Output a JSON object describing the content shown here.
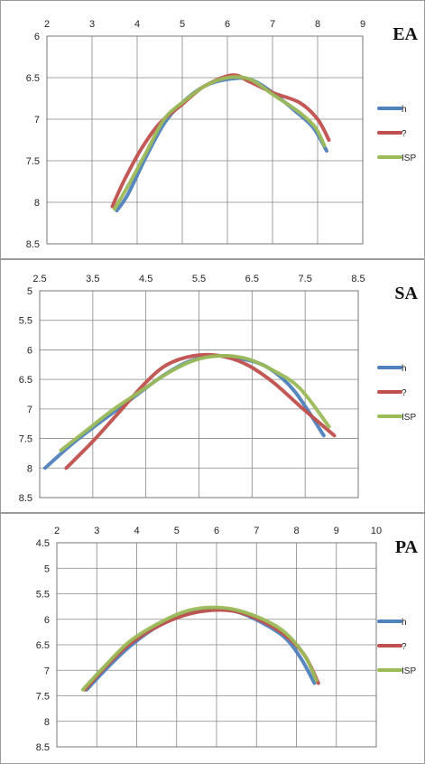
{
  "chart_data": [
    {
      "type": "line",
      "title": "EA",
      "xlim": [
        2,
        9
      ],
      "ylim": [
        6,
        8.5
      ],
      "y_axis_inverted": true,
      "x_axis_position": "top",
      "x_ticks": [
        "2",
        "3",
        "4",
        "5",
        "6",
        "7",
        "8",
        "9"
      ],
      "y_ticks": [
        "6",
        "6.5",
        "7",
        "7.5",
        "8",
        "8.5"
      ],
      "grid": true,
      "legend_position": "right",
      "series": [
        {
          "name": "h",
          "color": "#4f81bd",
          "x": [
            3.55,
            3.8,
            4.2,
            4.6,
            5.0,
            5.5,
            6.0,
            6.5,
            7.0,
            7.5,
            7.9,
            8.2
          ],
          "y": [
            8.1,
            7.9,
            7.45,
            7.05,
            6.8,
            6.6,
            6.52,
            6.52,
            6.68,
            6.9,
            7.1,
            7.38
          ]
        },
        {
          "name": "?",
          "color": "#c0504d",
          "x": [
            3.45,
            3.7,
            4.1,
            4.5,
            5.0,
            5.5,
            6.1,
            6.5,
            7.0,
            7.6,
            8.0,
            8.25
          ],
          "y": [
            8.05,
            7.75,
            7.35,
            7.05,
            6.82,
            6.6,
            6.47,
            6.55,
            6.68,
            6.8,
            7.0,
            7.25
          ]
        },
        {
          "name": "ISP",
          "color": "#9bbb59",
          "x": [
            3.5,
            3.8,
            4.2,
            4.6,
            5.0,
            5.5,
            6.0,
            6.5,
            7.0,
            7.6,
            7.95,
            8.15
          ],
          "y": [
            8.08,
            7.8,
            7.4,
            7.0,
            6.8,
            6.6,
            6.5,
            6.52,
            6.7,
            6.92,
            7.1,
            7.32
          ]
        }
      ]
    },
    {
      "type": "line",
      "title": "SA",
      "xlim": [
        2.5,
        8.5
      ],
      "ylim": [
        5,
        8.5
      ],
      "y_axis_inverted": true,
      "x_axis_position": "top",
      "x_ticks": [
        "2.5",
        "3.5",
        "4.5",
        "5.5",
        "6.5",
        "7.5",
        "8.5"
      ],
      "y_ticks": [
        "5",
        "5.5",
        "6",
        "6.5",
        "7",
        "7.5",
        "8",
        "8.5"
      ],
      "grid": true,
      "legend_position": "right",
      "series": [
        {
          "name": "h",
          "color": "#4f81bd",
          "x": [
            2.6,
            3.1,
            3.6,
            4.2,
            4.8,
            5.3,
            5.8,
            6.3,
            6.8,
            7.3,
            7.85
          ],
          "y": [
            8.0,
            7.6,
            7.25,
            6.85,
            6.45,
            6.2,
            6.1,
            6.15,
            6.3,
            6.7,
            7.45
          ]
        },
        {
          "name": "?",
          "color": "#c0504d",
          "x": [
            3.0,
            3.5,
            4.0,
            4.5,
            4.9,
            5.4,
            5.9,
            6.4,
            6.9,
            7.4,
            8.05
          ],
          "y": [
            8.0,
            7.55,
            7.05,
            6.55,
            6.25,
            6.1,
            6.1,
            6.25,
            6.55,
            6.95,
            7.45
          ]
        },
        {
          "name": "ISP",
          "color": "#9bbb59",
          "x": [
            2.9,
            3.4,
            3.9,
            4.4,
            4.9,
            5.4,
            5.9,
            6.4,
            6.9,
            7.4,
            7.95
          ],
          "y": [
            7.7,
            7.35,
            7.0,
            6.7,
            6.4,
            6.18,
            6.1,
            6.15,
            6.35,
            6.65,
            7.3
          ]
        }
      ]
    },
    {
      "type": "line",
      "title": "PA",
      "xlim": [
        2,
        10
      ],
      "ylim": [
        4.5,
        8.5
      ],
      "y_axis_inverted": true,
      "x_axis_position": "top",
      "x_ticks": [
        "2",
        "3",
        "4",
        "5",
        "6",
        "7",
        "8",
        "9",
        "10"
      ],
      "y_ticks": [
        "4.5",
        "5",
        "5.5",
        "6",
        "6.5",
        "7",
        "7.5",
        "8",
        "8.5"
      ],
      "grid": true,
      "legend_position": "right",
      "series": [
        {
          "name": "h",
          "color": "#4f81bd",
          "x": [
            2.75,
            3.2,
            3.8,
            4.5,
            5.2,
            5.9,
            6.5,
            7.1,
            7.7,
            8.1,
            8.45
          ],
          "y": [
            7.38,
            7.0,
            6.55,
            6.15,
            5.9,
            5.8,
            5.85,
            6.05,
            6.35,
            6.75,
            7.25
          ]
        },
        {
          "name": "?",
          "color": "#c0504d",
          "x": [
            2.7,
            3.2,
            3.8,
            4.5,
            5.2,
            5.9,
            6.5,
            7.1,
            7.7,
            8.2,
            8.55
          ],
          "y": [
            7.38,
            6.95,
            6.5,
            6.15,
            5.92,
            5.82,
            5.85,
            6.02,
            6.3,
            6.7,
            7.25
          ]
        },
        {
          "name": "ISP",
          "color": "#9bbb59",
          "x": [
            2.65,
            3.2,
            3.8,
            4.5,
            5.2,
            5.8,
            6.4,
            7.1,
            7.7,
            8.2,
            8.5
          ],
          "y": [
            7.38,
            6.92,
            6.45,
            6.1,
            5.85,
            5.77,
            5.8,
            5.98,
            6.25,
            6.7,
            7.2
          ]
        }
      ]
    }
  ]
}
